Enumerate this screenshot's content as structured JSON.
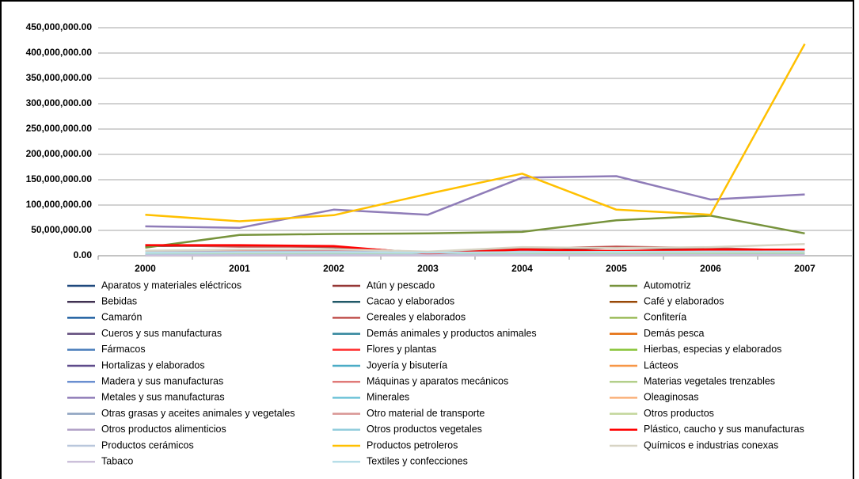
{
  "chart_data": {
    "type": "line",
    "categories": [
      "2000",
      "2001",
      "2002",
      "2003",
      "2004",
      "2005",
      "2006",
      "2007"
    ],
    "ylim": [
      0,
      450000000
    ],
    "yticks": [
      {
        "value": 0,
        "label": "0.00"
      },
      {
        "value": 50000000,
        "label": "50,000,000.00"
      },
      {
        "value": 100000000,
        "label": "100,000,000.00"
      },
      {
        "value": 150000000,
        "label": "150,000,000.00"
      },
      {
        "value": 200000000,
        "label": "200,000,000.00"
      },
      {
        "value": 250000000,
        "label": "250,000,000.00"
      },
      {
        "value": 300000000,
        "label": "300,000,000.00"
      },
      {
        "value": 350000000,
        "label": "350,000,000.00"
      },
      {
        "value": 400000000,
        "label": "400,000,000.00"
      },
      {
        "value": 450000000,
        "label": "450,000,000.00"
      }
    ],
    "grid": true,
    "series": [
      {
        "name": "Aparatos y materiales eléctricos",
        "color": "#1f497d",
        "values": [
          3000000,
          3500000,
          3000000,
          2500000,
          3000000,
          4000000,
          5000000,
          6000000
        ]
      },
      {
        "name": "Atún y pescado",
        "color": "#953735",
        "values": [
          19000000,
          20000000,
          17000000,
          6000000,
          9000000,
          16000000,
          13000000,
          8000000
        ]
      },
      {
        "name": "Automotriz",
        "color": "#77933c",
        "values": [
          16000000,
          41000000,
          43000000,
          44000000,
          47000000,
          70000000,
          79000000,
          44000000
        ]
      },
      {
        "name": "Bebidas",
        "color": "#403152",
        "values": [
          500000,
          600000,
          700000,
          800000,
          900000,
          1000000,
          1200000,
          1300000
        ]
      },
      {
        "name": "Cacao y elaborados",
        "color": "#215968",
        "values": [
          1500000,
          1800000,
          2000000,
          1700000,
          2000000,
          2300000,
          2500000,
          3000000
        ]
      },
      {
        "name": "Café y elaborados",
        "color": "#984807",
        "values": [
          2000000,
          2200000,
          2500000,
          2000000,
          2400000,
          2800000,
          3000000,
          3500000
        ]
      },
      {
        "name": "Camarón",
        "color": "#1f5fa0",
        "values": [
          1000000,
          1200000,
          1100000,
          900000,
          1000000,
          1300000,
          1500000,
          1400000
        ]
      },
      {
        "name": "Cereales y elaborados",
        "color": "#c0504d",
        "values": [
          21000000,
          18000000,
          18000000,
          5000000,
          14000000,
          18000000,
          15000000,
          10000000
        ]
      },
      {
        "name": "Confitería",
        "color": "#9bbb59",
        "values": [
          2500000,
          2700000,
          3000000,
          2600000,
          3200000,
          3500000,
          3800000,
          4000000
        ]
      },
      {
        "name": "Cueros y sus manufacturas",
        "color": "#604a7b",
        "values": [
          800000,
          900000,
          1000000,
          900000,
          1100000,
          1200000,
          1300000,
          1500000
        ]
      },
      {
        "name": "Demás animales y productos animales",
        "color": "#31859c",
        "values": [
          400000,
          500000,
          600000,
          500000,
          600000,
          700000,
          800000,
          900000
        ]
      },
      {
        "name": "Demás pesca",
        "color": "#e46c0a",
        "values": [
          1200000,
          1300000,
          1400000,
          1100000,
          1300000,
          1500000,
          1600000,
          1800000
        ]
      },
      {
        "name": "Fármacos",
        "color": "#4f81bd",
        "values": [
          6000000,
          6500000,
          7000000,
          6000000,
          7500000,
          8000000,
          9000000,
          10000000
        ]
      },
      {
        "name": "Flores y plantas",
        "color": "#ff3333",
        "values": [
          1500000,
          1700000,
          1900000,
          1600000,
          1800000,
          2000000,
          2200000,
          2500000
        ]
      },
      {
        "name": "Hierbas, especias y elaborados",
        "color": "#8cc63f",
        "values": [
          600000,
          700000,
          800000,
          700000,
          800000,
          900000,
          1000000,
          1100000
        ]
      },
      {
        "name": "Hortalizas y elaborados",
        "color": "#5f4b8b",
        "values": [
          1000000,
          1100000,
          1200000,
          1000000,
          1300000,
          1400000,
          1500000,
          1700000
        ]
      },
      {
        "name": "Joyería y bisutería",
        "color": "#4bacc6",
        "values": [
          300000,
          400000,
          500000,
          400000,
          500000,
          600000,
          700000,
          800000
        ]
      },
      {
        "name": "Lácteos",
        "color": "#f79646",
        "values": [
          700000,
          800000,
          900000,
          800000,
          900000,
          1000000,
          1100000,
          1200000
        ]
      },
      {
        "name": "Madera y sus manufacturas",
        "color": "#6a8fd0",
        "values": [
          2000000,
          2200000,
          2400000,
          2100000,
          2500000,
          2800000,
          3000000,
          3200000
        ]
      },
      {
        "name": "Máquinas y aparatos mecánicos",
        "color": "#e07a78",
        "values": [
          9000000,
          9500000,
          9000000,
          7000000,
          8000000,
          10000000,
          11000000,
          12000000
        ]
      },
      {
        "name": "Materias vegetales trenzables",
        "color": "#b3cf8a",
        "values": [
          200000,
          300000,
          300000,
          250000,
          300000,
          350000,
          400000,
          450000
        ]
      },
      {
        "name": "Metales y sus manufacturas",
        "color": "#8f7cb8",
        "values": [
          58000000,
          55000000,
          91000000,
          81000000,
          154000000,
          157000000,
          111000000,
          121000000
        ]
      },
      {
        "name": "Minerales",
        "color": "#6ec3d8",
        "values": [
          1000000,
          1200000,
          1400000,
          1300000,
          1500000,
          1700000,
          1900000,
          2100000
        ]
      },
      {
        "name": "Oleaginosas",
        "color": "#fab17a",
        "values": [
          3000000,
          3300000,
          3500000,
          3000000,
          3600000,
          4000000,
          4200000,
          4500000
        ]
      },
      {
        "name": "Otras grasas y aceites animales y vegetales",
        "color": "#8ea3c0",
        "values": [
          4000000,
          4500000,
          5000000,
          4200000,
          5000000,
          5500000,
          6000000,
          6500000
        ]
      },
      {
        "name": "Otro material de transporte",
        "color": "#d99694",
        "values": [
          5000000,
          6000000,
          5500000,
          4000000,
          6000000,
          7000000,
          6000000,
          5000000
        ]
      },
      {
        "name": "Otros productos",
        "color": "#c3d69b",
        "values": [
          3000000,
          3500000,
          3800000,
          3200000,
          4000000,
          4500000,
          5000000,
          5500000
        ]
      },
      {
        "name": "Otros productos alimenticios",
        "color": "#b2a2c7",
        "values": [
          7000000,
          7500000,
          8000000,
          7000000,
          8500000,
          9000000,
          10000000,
          11000000
        ]
      },
      {
        "name": "Otros productos vegetales",
        "color": "#93cddd",
        "values": [
          1500000,
          1600000,
          1800000,
          1500000,
          1700000,
          1900000,
          2100000,
          2300000
        ]
      },
      {
        "name": "Plástico, caucho y sus manufacturas",
        "color": "#ff0000",
        "values": [
          21000000,
          21000000,
          19000000,
          4000000,
          12000000,
          9000000,
          12000000,
          12000000
        ]
      },
      {
        "name": "Productos cerámicos",
        "color": "#b9c7dc",
        "values": [
          800000,
          900000,
          1000000,
          900000,
          1100000,
          1200000,
          1300000,
          1400000
        ]
      },
      {
        "name": "Productos petroleros",
        "color": "#ffc000",
        "values": [
          81000000,
          68000000,
          80000000,
          122000000,
          162000000,
          91000000,
          81000000,
          418000000
        ]
      },
      {
        "name": "Químicos e industrias conexas",
        "color": "#d7d4c4",
        "values": [
          10000000,
          12000000,
          13000000,
          8000000,
          17000000,
          15000000,
          17000000,
          23000000
        ]
      },
      {
        "name": "Tabaco",
        "color": "#ccc0da",
        "values": [
          500000,
          600000,
          700000,
          600000,
          700000,
          800000,
          900000,
          1000000
        ]
      },
      {
        "name": "Textiles y confecciones",
        "color": "#b7dee8",
        "values": [
          6000000,
          6500000,
          7000000,
          6000000,
          7000000,
          7500000,
          8000000,
          8500000
        ]
      }
    ]
  }
}
